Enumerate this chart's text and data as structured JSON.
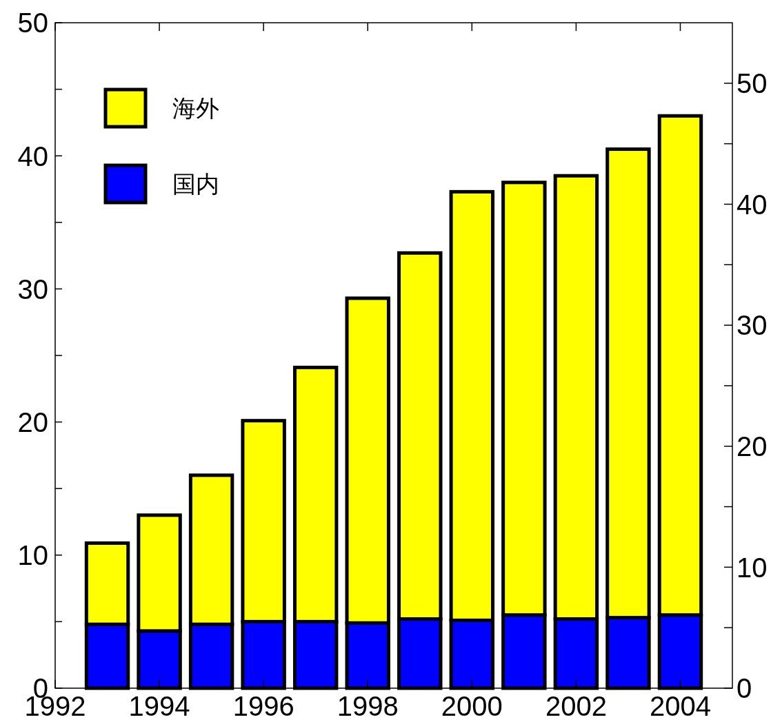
{
  "chart_data": {
    "type": "bar",
    "stacked": true,
    "x": [
      1993,
      1994,
      1995,
      1996,
      1997,
      1998,
      1999,
      2000,
      2001,
      2002,
      2003,
      2004
    ],
    "series": [
      {
        "name": "国内",
        "color": "#0000ff",
        "values": [
          4.8,
          4.3,
          4.8,
          5.0,
          5.0,
          4.9,
          5.2,
          5.1,
          5.5,
          5.2,
          5.3,
          5.5
        ]
      },
      {
        "name": "海外",
        "color": "#ffff00",
        "values": [
          6.1,
          8.7,
          11.2,
          15.1,
          19.1,
          24.4,
          27.5,
          32.2,
          32.5,
          33.3,
          35.2,
          37.5
        ]
      }
    ],
    "xlim": [
      1992,
      2005
    ],
    "xticks": [
      1992,
      1994,
      1996,
      1998,
      2000,
      2002,
      2004
    ],
    "ylim": [
      0,
      50
    ],
    "yticks": [
      0,
      {
        "value": 5,
        "label": null
      },
      10,
      {
        "value": 15,
        "label": null
      },
      20,
      {
        "value": 25,
        "label": null
      },
      30,
      {
        "value": 35,
        "label": null
      },
      40,
      {
        "value": 45,
        "label": null
      },
      50
    ],
    "y2lim": [
      0,
      55
    ],
    "y2ticks": [
      0,
      {
        "value": 5,
        "label": null
      },
      10,
      {
        "value": 15,
        "label": null
      },
      20,
      {
        "value": 25,
        "label": null
      },
      30,
      {
        "value": 35,
        "label": null
      },
      40,
      {
        "value": 45,
        "label": null
      },
      50
    ],
    "legend": "top left",
    "grid": false
  }
}
